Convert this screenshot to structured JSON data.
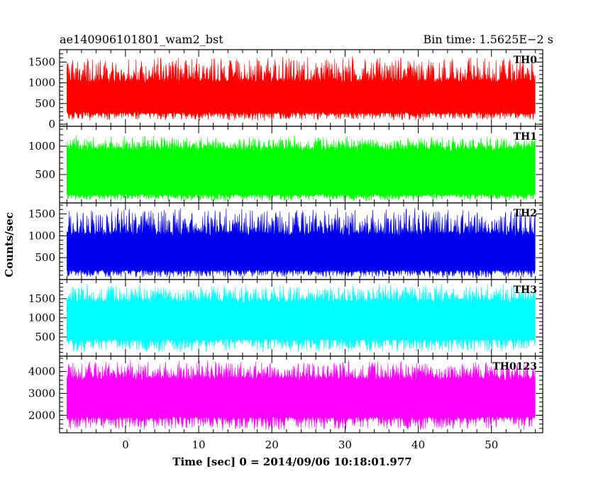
{
  "header": {
    "left_title": "ae140906101801_wam2_bst",
    "right_title": "Bin time: 1.5625E−2 s"
  },
  "chart_data": {
    "type": "line",
    "subtype": "stacked-light-curves",
    "xlabel": "Time [sec] 0 = 2014/09/06 10:18:01.977",
    "ylabel": "Counts/sec",
    "xlim": [
      -9,
      57
    ],
    "data_xrange": [
      -8,
      56
    ],
    "bin_time_s": 0.015625,
    "x_ticks": [
      0,
      10,
      20,
      30,
      40,
      50
    ],
    "x_minor_step": 2,
    "grid": false,
    "panels": [
      {
        "name": "TH0",
        "color": "#ff0000",
        "ylim": [
          -50,
          1800
        ],
        "yticks": [
          0,
          500,
          1000,
          1500
        ],
        "y_minor_step": 100,
        "typical_range": [
          250,
          1100
        ],
        "envelope": [
          80,
          1650
        ]
      },
      {
        "name": "TH1",
        "color": "#00ff00",
        "ylim": [
          0,
          1350
        ],
        "yticks": [
          500,
          1000
        ],
        "y_minor_step": 100,
        "typical_range": [
          120,
          1000
        ],
        "envelope": [
          20,
          1200
        ]
      },
      {
        "name": "TH2",
        "color": "#0000ee",
        "ylim": [
          0,
          1750
        ],
        "yticks": [
          500,
          1000,
          1500
        ],
        "y_minor_step": 100,
        "typical_range": [
          180,
          1100
        ],
        "envelope": [
          30,
          1650
        ]
      },
      {
        "name": "TH3",
        "color": "#00ffff",
        "ylim": [
          0,
          2000
        ],
        "yticks": [
          500,
          1000,
          1500
        ],
        "y_minor_step": 100,
        "typical_range": [
          400,
          1500
        ],
        "envelope": [
          80,
          1900
        ]
      },
      {
        "name": "TH0123",
        "color": "#ff00ff",
        "ylim": [
          1200,
          4700
        ],
        "yticks": [
          2000,
          3000,
          4000
        ],
        "y_minor_step": 200,
        "typical_range": [
          1850,
          3800
        ],
        "envelope": [
          1300,
          4550
        ]
      }
    ]
  }
}
